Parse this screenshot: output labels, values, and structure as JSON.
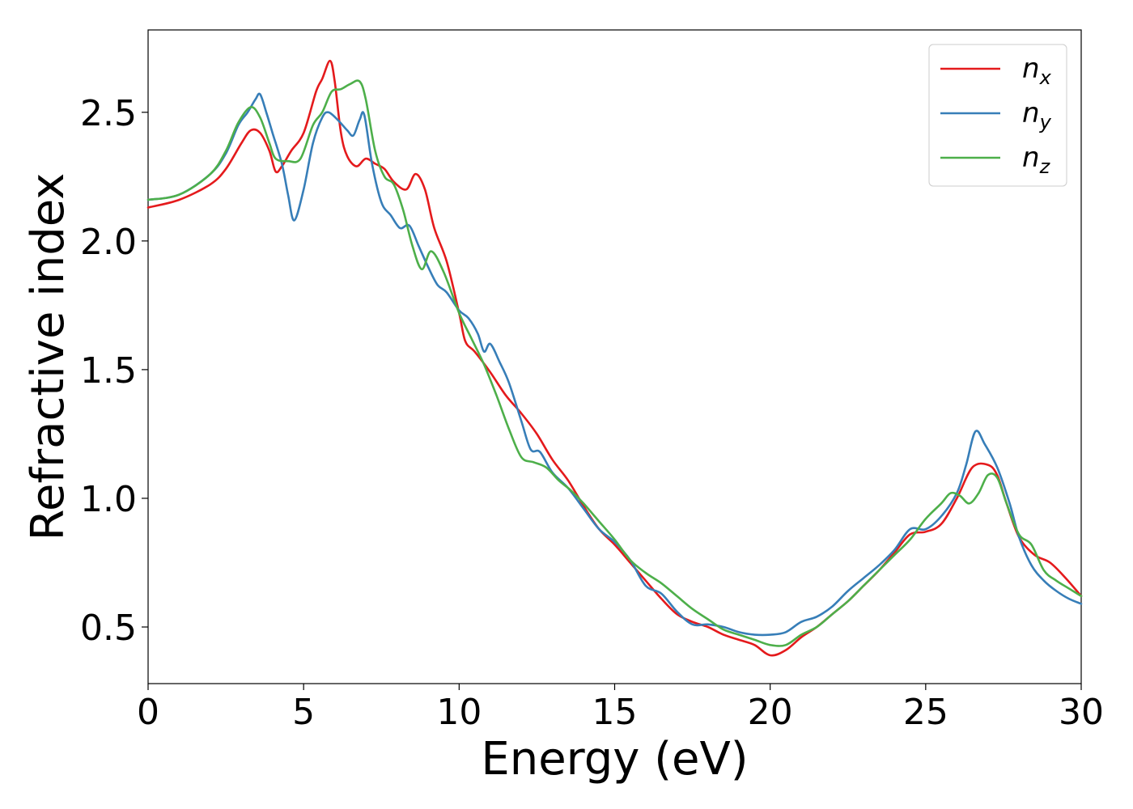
{
  "chart_data": {
    "type": "line",
    "xlabel": "Energy (eV)",
    "ylabel": "Refractive index",
    "xlim": [
      0,
      30
    ],
    "ylim": [
      0.28,
      2.82
    ],
    "xticks": [
      0,
      5,
      10,
      15,
      20,
      25,
      30
    ],
    "yticks": [
      0.5,
      1.0,
      1.5,
      2.0,
      2.5
    ],
    "xtick_labels": [
      "0",
      "5",
      "10",
      "15",
      "20",
      "25",
      "30"
    ],
    "ytick_labels": [
      "0.5",
      "1.0",
      "1.5",
      "2.0",
      "2.5"
    ],
    "grid": false,
    "legend_position": "top-right",
    "series": [
      {
        "name": "n",
        "subscript": "x",
        "color": "#e41a1c",
        "x": [
          0,
          1,
          2,
          2.5,
          3,
          3.3,
          3.6,
          3.9,
          4.1,
          4.3,
          4.6,
          5.0,
          5.4,
          5.6,
          5.85,
          6.0,
          6.2,
          6.4,
          6.7,
          7.0,
          7.3,
          7.6,
          7.9,
          8.3,
          8.6,
          8.9,
          9.2,
          9.6,
          10.0,
          10.2,
          10.5,
          11.0,
          11.5,
          12.0,
          12.5,
          13.0,
          13.5,
          14.0,
          14.5,
          15.0,
          15.5,
          16.0,
          16.5,
          17.0,
          17.5,
          18.0,
          18.5,
          19.0,
          19.5,
          20.0,
          20.5,
          21.0,
          21.5,
          22.0,
          22.5,
          23.0,
          23.5,
          24.0,
          24.5,
          25.0,
          25.5,
          26.0,
          26.5,
          27.0,
          27.3,
          27.6,
          28.0,
          28.5,
          29.0,
          29.5,
          30.0
        ],
        "y": [
          2.13,
          2.16,
          2.22,
          2.28,
          2.38,
          2.43,
          2.42,
          2.35,
          2.27,
          2.29,
          2.35,
          2.42,
          2.58,
          2.63,
          2.7,
          2.62,
          2.42,
          2.33,
          2.29,
          2.32,
          2.3,
          2.28,
          2.23,
          2.2,
          2.26,
          2.2,
          2.05,
          1.92,
          1.72,
          1.61,
          1.57,
          1.49,
          1.4,
          1.33,
          1.25,
          1.15,
          1.07,
          0.97,
          0.88,
          0.82,
          0.75,
          0.68,
          0.61,
          0.55,
          0.52,
          0.5,
          0.47,
          0.45,
          0.43,
          0.39,
          0.41,
          0.46,
          0.5,
          0.55,
          0.6,
          0.66,
          0.72,
          0.79,
          0.86,
          0.87,
          0.9,
          1.0,
          1.12,
          1.13,
          1.09,
          0.98,
          0.85,
          0.78,
          0.75,
          0.69,
          0.62
        ]
      },
      {
        "name": "n",
        "subscript": "y",
        "color": "#377eb8",
        "x": [
          0,
          1,
          2,
          2.5,
          2.9,
          3.2,
          3.45,
          3.6,
          3.8,
          4.0,
          4.3,
          4.5,
          4.7,
          5.0,
          5.3,
          5.6,
          5.8,
          6.1,
          6.4,
          6.6,
          6.8,
          6.95,
          7.2,
          7.5,
          7.8,
          8.1,
          8.4,
          8.7,
          9.0,
          9.3,
          9.6,
          10.0,
          10.3,
          10.6,
          10.8,
          11.0,
          11.3,
          11.6,
          12.0,
          12.3,
          12.6,
          13.0,
          13.5,
          14.0,
          14.5,
          15.0,
          15.5,
          16.0,
          16.5,
          17.0,
          17.5,
          18.0,
          18.5,
          19.0,
          19.5,
          20.0,
          20.5,
          21.0,
          21.5,
          22.0,
          22.5,
          23.0,
          23.5,
          24.0,
          24.5,
          25.0,
          25.5,
          26.0,
          26.3,
          26.6,
          26.9,
          27.3,
          27.7,
          28.0,
          28.4,
          28.8,
          29.2,
          29.6,
          30.0
        ],
        "y": [
          2.16,
          2.18,
          2.26,
          2.34,
          2.45,
          2.5,
          2.55,
          2.57,
          2.5,
          2.42,
          2.3,
          2.18,
          2.08,
          2.2,
          2.38,
          2.48,
          2.5,
          2.47,
          2.43,
          2.41,
          2.47,
          2.49,
          2.3,
          2.15,
          2.1,
          2.05,
          2.06,
          1.98,
          1.9,
          1.83,
          1.8,
          1.73,
          1.7,
          1.64,
          1.57,
          1.6,
          1.53,
          1.45,
          1.3,
          1.19,
          1.18,
          1.1,
          1.04,
          0.96,
          0.88,
          0.83,
          0.76,
          0.66,
          0.63,
          0.56,
          0.51,
          0.51,
          0.5,
          0.48,
          0.47,
          0.47,
          0.48,
          0.52,
          0.54,
          0.58,
          0.64,
          0.69,
          0.74,
          0.8,
          0.88,
          0.88,
          0.93,
          1.02,
          1.13,
          1.26,
          1.21,
          1.12,
          0.98,
          0.85,
          0.74,
          0.68,
          0.64,
          0.61,
          0.59
        ]
      },
      {
        "name": "n",
        "subscript": "z",
        "color": "#4daf4a",
        "x": [
          0,
          1,
          2,
          2.5,
          2.9,
          3.3,
          3.6,
          3.9,
          4.1,
          4.5,
          4.9,
          5.3,
          5.6,
          5.9,
          6.2,
          6.5,
          6.8,
          7.0,
          7.3,
          7.6,
          7.9,
          8.2,
          8.5,
          8.8,
          9.1,
          9.5,
          10.0,
          10.4,
          10.8,
          11.2,
          11.6,
          12.0,
          12.4,
          12.8,
          13.2,
          13.6,
          14.0,
          14.5,
          15.0,
          15.5,
          16.0,
          16.5,
          17.0,
          17.5,
          18.0,
          18.5,
          19.0,
          19.5,
          20.0,
          20.5,
          21.0,
          21.5,
          22.0,
          22.5,
          23.0,
          23.5,
          24.0,
          24.5,
          25.0,
          25.5,
          25.8,
          26.1,
          26.4,
          26.7,
          27.0,
          27.3,
          27.6,
          28.0,
          28.4,
          28.8,
          29.2,
          29.6,
          30.0
        ],
        "y": [
          2.16,
          2.18,
          2.26,
          2.35,
          2.46,
          2.52,
          2.48,
          2.38,
          2.32,
          2.31,
          2.32,
          2.45,
          2.5,
          2.58,
          2.59,
          2.61,
          2.62,
          2.55,
          2.35,
          2.25,
          2.22,
          2.12,
          1.98,
          1.89,
          1.96,
          1.88,
          1.72,
          1.62,
          1.52,
          1.4,
          1.27,
          1.16,
          1.14,
          1.12,
          1.07,
          1.03,
          0.98,
          0.91,
          0.84,
          0.76,
          0.71,
          0.67,
          0.62,
          0.57,
          0.53,
          0.49,
          0.47,
          0.45,
          0.43,
          0.43,
          0.47,
          0.5,
          0.55,
          0.6,
          0.66,
          0.72,
          0.78,
          0.84,
          0.92,
          0.98,
          1.02,
          1.01,
          0.98,
          1.02,
          1.09,
          1.08,
          0.98,
          0.86,
          0.82,
          0.72,
          0.68,
          0.65,
          0.62
        ]
      }
    ]
  }
}
